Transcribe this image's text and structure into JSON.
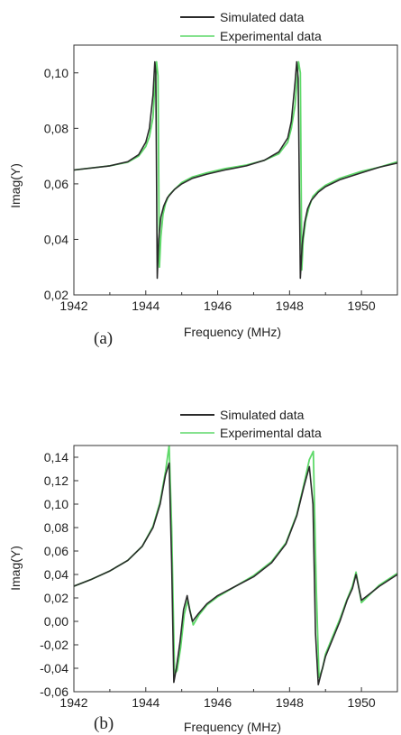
{
  "chart_data": [
    {
      "type": "line",
      "panel_label": "(a)",
      "xlabel": "Frequency (MHz)",
      "ylabel": "Imag(Y)",
      "xlim": [
        1942,
        1951
      ],
      "ylim": [
        0.02,
        0.11
      ],
      "xticks": [
        1942,
        1944,
        1946,
        1948,
        1950
      ],
      "xtick_labels": [
        "1942",
        "1944",
        "1946",
        "1948",
        "1950"
      ],
      "yticks": [
        0.02,
        0.04,
        0.06,
        0.08,
        0.1
      ],
      "ytick_labels": [
        "0,02",
        "0,04",
        "0,06",
        "0,08",
        "0,10"
      ],
      "grid": false,
      "legend_position": "top-right, above plot",
      "series": [
        {
          "name": "Simulated data",
          "color": "#2b2b2b",
          "x": [
            1942,
            1943,
            1943.5,
            1943.8,
            1944.0,
            1944.1,
            1944.2,
            1944.25,
            1944.28,
            1944.32,
            1944.36,
            1944.42,
            1944.5,
            1944.6,
            1944.8,
            1945.0,
            1945.3,
            1945.7,
            1946.2,
            1946.8,
            1947.3,
            1947.7,
            1947.95,
            1948.05,
            1948.15,
            1948.2,
            1948.24,
            1948.3,
            1948.35,
            1948.42,
            1948.5,
            1948.6,
            1948.8,
            1949.0,
            1949.4,
            1950.0,
            1950.5,
            1951.0
          ],
          "y": [
            0.065,
            0.0665,
            0.068,
            0.0705,
            0.075,
            0.08,
            0.092,
            0.104,
            0.1,
            0.026,
            0.04,
            0.048,
            0.052,
            0.055,
            0.058,
            0.06,
            0.062,
            0.0635,
            0.065,
            0.0665,
            0.0685,
            0.0715,
            0.0765,
            0.0825,
            0.096,
            0.104,
            0.098,
            0.026,
            0.038,
            0.046,
            0.051,
            0.054,
            0.057,
            0.059,
            0.0615,
            0.064,
            0.066,
            0.0675
          ]
        },
        {
          "name": "Experimental data",
          "color": "#5fd96a",
          "x": [
            1942,
            1943,
            1943.5,
            1943.8,
            1944.0,
            1944.1,
            1944.2,
            1944.3,
            1944.34,
            1944.38,
            1944.42,
            1944.48,
            1944.55,
            1944.65,
            1944.8,
            1945.0,
            1945.3,
            1945.7,
            1946.2,
            1946.8,
            1947.3,
            1947.7,
            1947.95,
            1948.05,
            1948.15,
            1948.25,
            1948.3,
            1948.34,
            1948.38,
            1948.45,
            1948.55,
            1948.65,
            1948.8,
            1949.0,
            1949.4,
            1950.0,
            1950.5,
            1951.0
          ],
          "y": [
            0.065,
            0.0665,
            0.0678,
            0.07,
            0.0735,
            0.077,
            0.084,
            0.104,
            0.099,
            0.03,
            0.041,
            0.049,
            0.053,
            0.056,
            0.058,
            0.0605,
            0.0625,
            0.064,
            0.0655,
            0.0668,
            0.0685,
            0.0708,
            0.075,
            0.08,
            0.088,
            0.104,
            0.1,
            0.029,
            0.04,
            0.047,
            0.052,
            0.0555,
            0.0575,
            0.0595,
            0.062,
            0.0645,
            0.066,
            0.068
          ]
        }
      ]
    },
    {
      "type": "line",
      "panel_label": "(b)",
      "xlabel": "Frequency (MHz)",
      "ylabel": "Imag(Y)",
      "xlim": [
        1942,
        1951
      ],
      "ylim": [
        -0.06,
        0.15
      ],
      "xticks": [
        1942,
        1944,
        1946,
        1948,
        1950
      ],
      "xtick_labels": [
        "1942",
        "1944",
        "1946",
        "1948",
        "1950"
      ],
      "yticks": [
        -0.06,
        -0.04,
        -0.02,
        0.0,
        0.02,
        0.04,
        0.06,
        0.08,
        0.1,
        0.12,
        0.14
      ],
      "ytick_labels": [
        "-0,06",
        "-0,04",
        "-0,02",
        "0,00",
        "0,02",
        "0,04",
        "0,06",
        "0,08",
        "0,10",
        "0,12",
        "0,14"
      ],
      "grid": false,
      "legend_position": "top-right, above plot",
      "series": [
        {
          "name": "Simulated data",
          "color": "#2b2b2b",
          "x": [
            1942,
            1942.5,
            1943,
            1943.5,
            1943.9,
            1944.2,
            1944.4,
            1944.55,
            1944.65,
            1944.72,
            1944.78,
            1944.85,
            1944.95,
            1945.05,
            1945.15,
            1945.22,
            1945.3,
            1945.45,
            1945.7,
            1946.0,
            1946.5,
            1947.0,
            1947.5,
            1947.9,
            1948.2,
            1948.4,
            1948.55,
            1948.65,
            1948.72,
            1948.8,
            1948.9,
            1949.0,
            1949.2,
            1949.4,
            1949.6,
            1949.75,
            1949.85,
            1950.0,
            1950.5,
            1951.0
          ],
          "y": [
            0.03,
            0.036,
            0.043,
            0.052,
            0.064,
            0.08,
            0.1,
            0.125,
            0.135,
            0.05,
            -0.052,
            -0.04,
            -0.018,
            0.01,
            0.022,
            0.01,
            0.0,
            0.006,
            0.015,
            0.022,
            0.03,
            0.038,
            0.05,
            0.066,
            0.09,
            0.115,
            0.132,
            0.1,
            -0.01,
            -0.054,
            -0.042,
            -0.03,
            -0.015,
            0.0,
            0.018,
            0.028,
            0.04,
            0.018,
            0.03,
            0.04
          ]
        },
        {
          "name": "Experimental data",
          "color": "#5fd96a",
          "x": [
            1942,
            1942.5,
            1943,
            1943.5,
            1943.9,
            1944.2,
            1944.4,
            1944.55,
            1944.65,
            1944.72,
            1944.8,
            1944.87,
            1944.97,
            1945.07,
            1945.17,
            1945.24,
            1945.32,
            1945.47,
            1945.7,
            1946.0,
            1946.5,
            1947.0,
            1947.5,
            1947.9,
            1948.2,
            1948.4,
            1948.55,
            1948.66,
            1948.74,
            1948.82,
            1948.92,
            1949.0,
            1949.2,
            1949.4,
            1949.6,
            1949.75,
            1949.85,
            1950.0,
            1950.5,
            1951.0
          ],
          "y": [
            0.03,
            0.036,
            0.043,
            0.052,
            0.064,
            0.081,
            0.102,
            0.128,
            0.15,
            0.08,
            -0.045,
            -0.042,
            -0.022,
            0.006,
            0.018,
            0.008,
            -0.003,
            0.005,
            0.014,
            0.021,
            0.03,
            0.039,
            0.051,
            0.067,
            0.091,
            0.117,
            0.138,
            0.145,
            0.03,
            -0.048,
            -0.04,
            -0.028,
            -0.013,
            0.002,
            0.019,
            0.03,
            0.042,
            0.016,
            0.031,
            0.041
          ]
        }
      ]
    }
  ]
}
